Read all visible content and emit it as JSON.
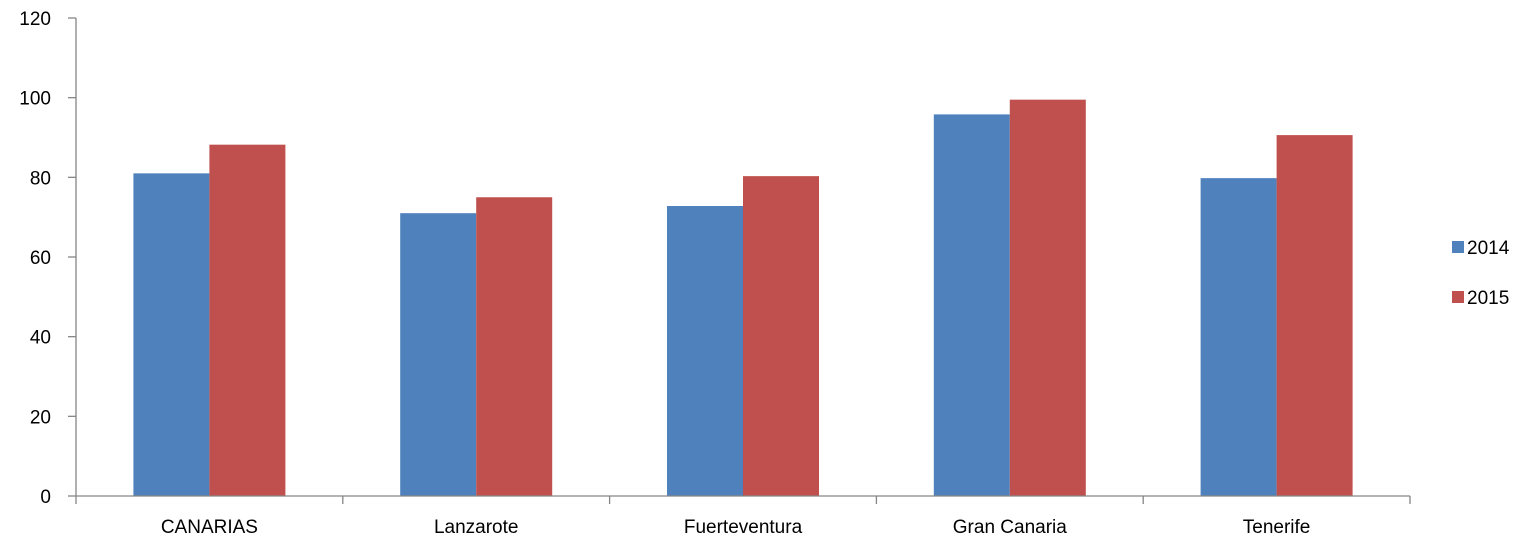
{
  "chart_data": {
    "type": "bar",
    "title": "",
    "xlabel": "",
    "ylabel": "",
    "categories": [
      "CANARIAS",
      "Lanzarote",
      "Fuerteventura",
      "Gran Canaria",
      "Tenerife"
    ],
    "series": [
      {
        "name": "2014",
        "color": "#4F81BD",
        "values": [
          81,
          71,
          72.8,
          95.8,
          79.8
        ]
      },
      {
        "name": "2015",
        "color": "#C0504D",
        "values": [
          88.2,
          75,
          80.3,
          99.5,
          90.6
        ]
      }
    ],
    "ylim": [
      0,
      120
    ],
    "yticks": [
      "0",
      "20",
      "40",
      "60",
      "80",
      "100",
      "120"
    ],
    "grid": false,
    "legend_position": "right"
  }
}
